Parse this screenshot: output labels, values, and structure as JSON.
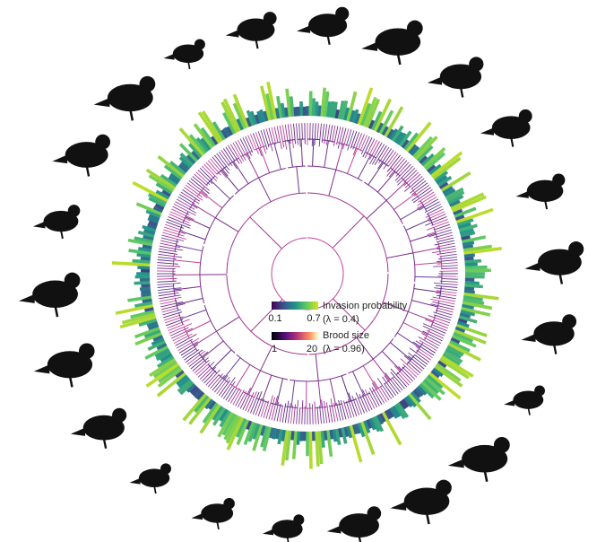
{
  "legend": {
    "invasion": {
      "title": "Invasion probability",
      "lambda": "(λ = 0.4)",
      "min": 0.1,
      "max": 0.7
    },
    "brood": {
      "title": "Brood size",
      "lambda": "(λ = 0.96)",
      "min": 1,
      "max": 20
    }
  }
}
